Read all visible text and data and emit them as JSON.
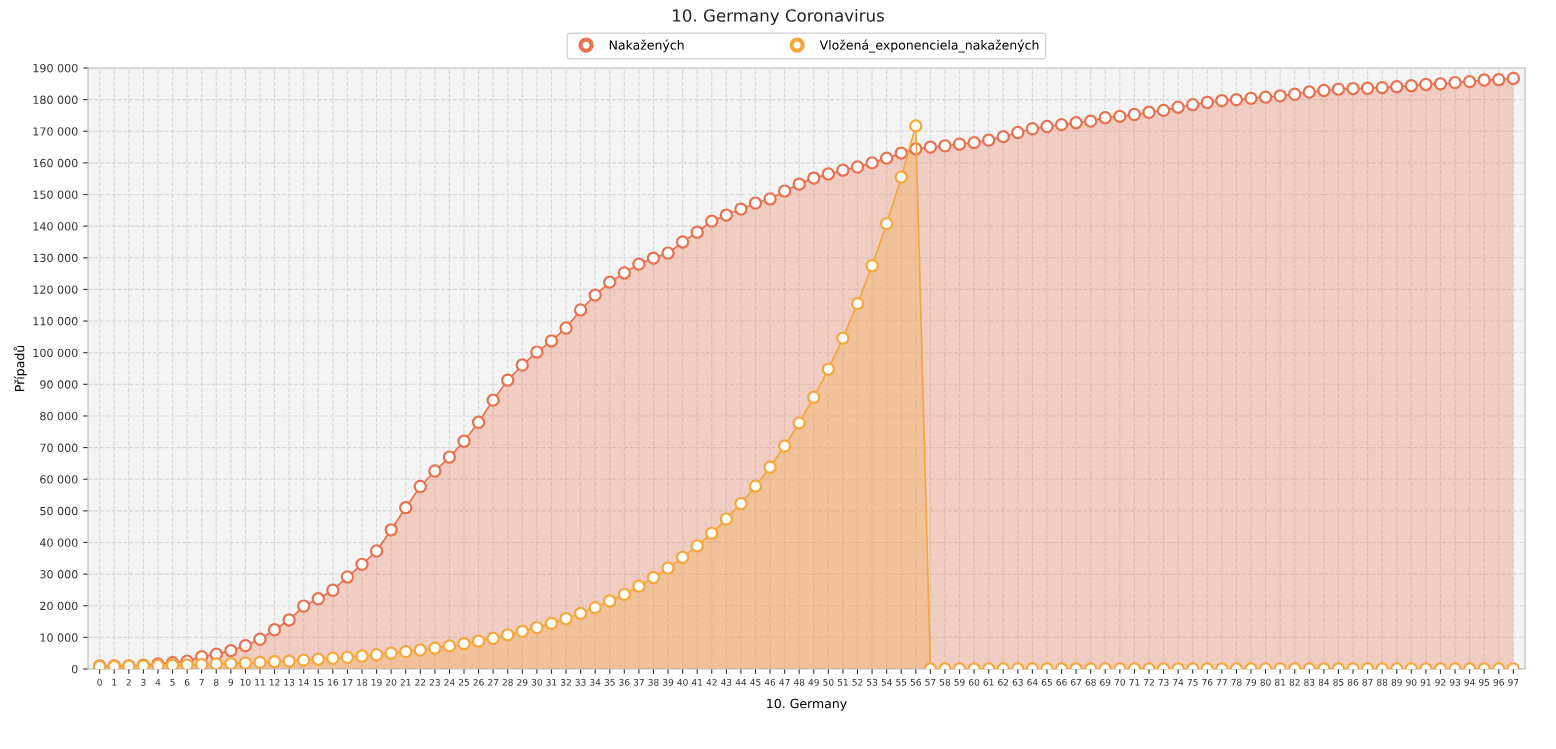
{
  "chart_data": {
    "type": "area",
    "title": "10. Germany Coronavirus",
    "xlabel": "10. Germany",
    "ylabel": "Případů",
    "categories": [
      "0",
      "1",
      "2",
      "3",
      "4",
      "5",
      "6",
      "7",
      "8",
      "9",
      "10",
      "11",
      "12",
      "13",
      "14",
      "15",
      "16",
      "17",
      "18",
      "19",
      "20",
      "21",
      "22",
      "23",
      "24",
      "25",
      "26",
      "27",
      "28",
      "29",
      "30",
      "31",
      "32",
      "33",
      "34",
      "35",
      "36",
      "37",
      "38",
      "39",
      "40",
      "41",
      "42",
      "43",
      "44",
      "45",
      "46",
      "47",
      "48",
      "49",
      "50",
      "51",
      "52",
      "53",
      "54",
      "55",
      "56",
      "57",
      "58",
      "59",
      "60",
      "61",
      "62",
      "63",
      "64",
      "65",
      "66",
      "67",
      "68",
      "69",
      "70",
      "71",
      "72",
      "73",
      "74",
      "75",
      "76",
      "77",
      "78",
      "79",
      "80",
      "81",
      "82",
      "83",
      "84",
      "85",
      "86",
      "87",
      "88",
      "89",
      "90",
      "91",
      "92",
      "93",
      "94",
      "95",
      "96",
      "97"
    ],
    "series": [
      {
        "name": "Nakažených",
        "color": "#e8724f",
        "values": [
          1000,
          1000,
          1000,
          1200,
          1600,
          2000,
          2500,
          3900,
          4700,
          5800,
          7400,
          9400,
          12400,
          15500,
          19900,
          22200,
          24900,
          29100,
          33100,
          37300,
          44000,
          51000,
          57700,
          62600,
          67000,
          72000,
          78000,
          85000,
          91300,
          96100,
          100200,
          103700,
          107800,
          113500,
          118200,
          122300,
          125200,
          128000,
          129900,
          131500,
          135000,
          138100,
          141600,
          143500,
          145400,
          147300,
          148600,
          151100,
          153300,
          155200,
          156500,
          157700,
          158700,
          160000,
          161500,
          163100,
          164400,
          165000,
          165400,
          165900,
          166400,
          167200,
          168300,
          169600,
          170800,
          171500,
          172100,
          172700,
          173200,
          174300,
          174700,
          175300,
          176000,
          176600,
          177600,
          178400,
          179100,
          179700,
          180000,
          180400,
          180800,
          181200,
          181700,
          182400,
          182900,
          183300,
          183500,
          183600,
          183800,
          184100,
          184400,
          184800,
          185000,
          185400,
          185700,
          186200,
          186300,
          186700
        ]
      },
      {
        "name": "Vložená_exponenciela_nakažených",
        "color": "#f5a83a",
        "values": [
          800,
          800,
          900,
          1000,
          1100,
          1200,
          1300,
          1400,
          1600,
          1700,
          1900,
          2100,
          2300,
          2500,
          2800,
          3100,
          3400,
          3700,
          4100,
          4500,
          5000,
          5500,
          6000,
          6600,
          7300,
          8000,
          8800,
          9700,
          10800,
          11900,
          13100,
          14400,
          15900,
          17600,
          19400,
          21500,
          23600,
          26200,
          28900,
          31900,
          35300,
          38900,
          42900,
          47400,
          52300,
          57800,
          63800,
          70500,
          77800,
          85900,
          94800,
          104600,
          115500,
          127500,
          140800,
          155500,
          171700,
          0,
          0,
          0,
          0,
          0,
          0,
          0,
          0,
          0,
          0,
          0,
          0,
          0,
          0,
          0,
          0,
          0,
          0,
          0,
          0,
          0,
          0,
          0,
          0,
          0,
          0,
          0,
          0,
          0,
          0,
          0,
          0,
          0,
          0,
          0,
          0,
          0,
          0,
          0,
          0,
          0
        ]
      }
    ],
    "ylim": [
      0,
      190000
    ],
    "yticks": [
      0,
      {
        "value": 10000,
        "label": "10 000"
      },
      {
        "value": 20000,
        "label": "20 000"
      },
      {
        "value": 30000,
        "label": "30 000"
      },
      {
        "value": 40000,
        "label": "40 000"
      },
      {
        "value": 50000,
        "label": "50 000"
      },
      {
        "value": 60000,
        "label": "60 000"
      },
      {
        "value": 70000,
        "label": "70 000"
      },
      {
        "value": 80000,
        "label": "80 000"
      },
      {
        "value": 90000,
        "label": "90 000"
      },
      {
        "value": 100000,
        "label": "100 000"
      },
      {
        "value": 110000,
        "label": "110 000"
      },
      {
        "value": 120000,
        "label": "120 000"
      },
      {
        "value": 130000,
        "label": "130 000"
      },
      {
        "value": 140000,
        "label": "140 000"
      },
      {
        "value": 150000,
        "label": "150 000"
      },
      {
        "value": 160000,
        "label": "160 000"
      },
      {
        "value": 170000,
        "label": "170 000"
      },
      {
        "value": 180000,
        "label": "180 000"
      },
      {
        "value": 190000,
        "label": "190 000"
      }
    ],
    "grid": true,
    "legend": "top",
    "marker": "circle",
    "line_style": "solid"
  }
}
